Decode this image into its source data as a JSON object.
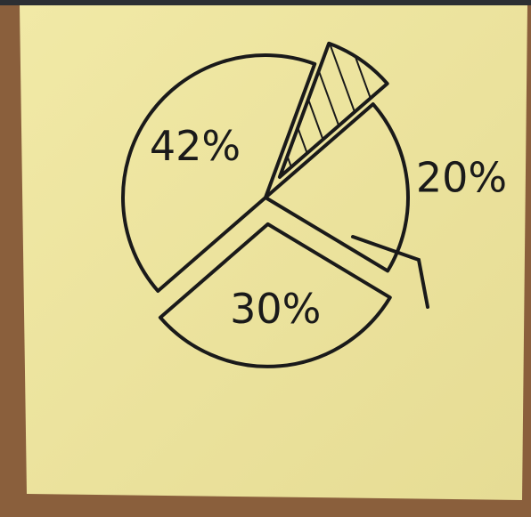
{
  "chart_data": {
    "type": "pie",
    "values": [
      42,
      8,
      20,
      30
    ],
    "value_labels": [
      "42%",
      null,
      "20%",
      "30%"
    ],
    "hatched": [
      false,
      true,
      false,
      false
    ],
    "color": "#1a1a1a"
  }
}
